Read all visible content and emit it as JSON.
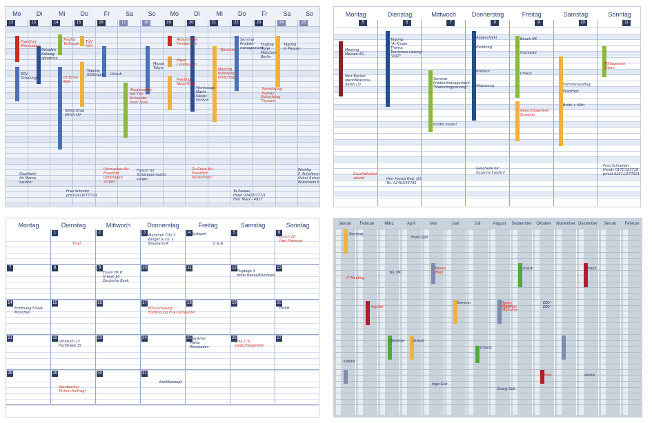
{
  "panel1": {
    "days": [
      "Mo",
      "Di",
      "Mi",
      "Do",
      "Fr",
      "Sa",
      "So",
      "Mo",
      "Di",
      "Mi",
      "Do",
      "Fr",
      "Sa",
      "So"
    ],
    "dates": [
      "12",
      "13",
      "14",
      "15",
      "16",
      "17",
      "18",
      "19",
      "20",
      "21",
      "22",
      "23",
      "24",
      "25"
    ],
    "notes": [
      {
        "text": "Frankfurt\nWiesbaden",
        "red": true
      },
      {
        "text": "Dresden\nKatalog-\nabnahme",
        "red": false
      },
      {
        "text": "Madrid\nTo Burger",
        "red": true
      },
      {
        "text": "TÜV\nKöln",
        "red": true
      },
      {
        "text": "EDV\nSchulung",
        "red": false
      },
      {
        "text": "Urlaub",
        "red": false
      },
      {
        "text": "Tagung\nGöttingen",
        "red": false
      },
      {
        "text": "Geburtstag\nUlrich (3)",
        "red": false
      },
      {
        "text": "Dr.To Go\nKöln",
        "red": true
      },
      {
        "text": "Messe\nTokyo",
        "red": false
      },
      {
        "text": "Wiedersehen\nmit Tim\nSchneider\nbeim Spiel",
        "red": true
      },
      {
        "text": "Aktenordner\nFernbereich",
        "red": true
      },
      {
        "text": "Bayer\nLeverkusen",
        "red": true
      },
      {
        "text": "Meeting\nNeue Halle",
        "red": true
      },
      {
        "text": "Vernissage\nMarkt\nKaiser-\nkirchen",
        "red": false
      },
      {
        "text": "Bochum",
        "red": true
      },
      {
        "text": "Meeting\nNürnberg\nUmschlag",
        "red": true
      },
      {
        "text": "Seminar\nProdukt-\nmanagement",
        "red": false
      },
      {
        "text": "Flugtag\nHotel\nMünchen\nBerlin",
        "red": false
      },
      {
        "text": "Tagung\nin Passau",
        "red": false
      },
      {
        "text": "Fortbildung\nPassau",
        "red": true
      },
      {
        "text": "Geburtstag\nThyssen",
        "red": true
      },
      {
        "text": "Geschenk\nfür Mama\nkaufen!",
        "red": false
      },
      {
        "text": "Frau Schmitz\npro 02418/777/21",
        "red": false
      },
      {
        "text": "Uhrmacher für\nFrankfurt\nUnterlagen\nsorgen",
        "red": true
      },
      {
        "text": "Fleisch für\nSchwiegermutter\nsorgen",
        "red": false
      },
      {
        "text": "Zu Reise für\nFrankfurt\nbestimmen!",
        "red": true
      },
      {
        "text": "To Passau\nHotel 02418/777/1\nHerr Marx - 4927",
        "red": false
      },
      {
        "text": "Wichtig\nP. Anlieferung\nOskar Reisen\nWiesmann kaufen",
        "red": false
      }
    ]
  },
  "panel2": {
    "days": [
      "Montag",
      "Dienstag",
      "Mittwoch",
      "Donnerstag",
      "Freitag",
      "Samstag",
      "Sonntag"
    ],
    "dates": [
      "5",
      "6",
      "7",
      "8",
      "9",
      "10",
      "11"
    ],
    "notes": [
      {
        "text": "Meeting\nMessen AG",
        "red": false
      },
      {
        "text": "Herr Becker\nIdentifikations-\ndaten (3)",
        "red": false
      },
      {
        "text": "Tagung\n\"Al-Kinder\nThema:\nTourismus-Lösung\n\"XRZ\"",
        "red": false
      },
      {
        "text": "Seminar\nProduktmanagement\n\"Marketingplanung\"",
        "red": false
      },
      {
        "text": "Kinder essen!",
        "red": false
      },
      {
        "text": "Abgeschickt",
        "red": false
      },
      {
        "text": "Hamburg",
        "red": false
      },
      {
        "text": "Bremen",
        "red": false
      },
      {
        "text": "Oldenburg",
        "red": false
      },
      {
        "text": "Bauch HK",
        "red": false
      },
      {
        "text": "Fachtorte",
        "red": false
      },
      {
        "text": "Urlaub",
        "red": false
      },
      {
        "text": "Geburtstagsfeier\nSusanne",
        "red": true
      },
      {
        "text": "Familienausflug",
        "red": false
      },
      {
        "text": "Frankfurt",
        "red": false
      },
      {
        "text": "Brüel + Köln",
        "red": false
      },
      {
        "text": "Mittagessen\nEltern",
        "red": true
      },
      {
        "text": "Geschäftsfest\nabend",
        "red": true
      },
      {
        "text": "Herr Hansa Geb. (2)\nTel. 02403/55785",
        "red": false
      },
      {
        "text": "Geschenk für\nSusanne kaufen!",
        "red": false
      },
      {
        "text": "Frau Schneider\nHandy 0171/123718\nprivat 02411/577021",
        "red": false
      }
    ]
  },
  "panel3": {
    "days": [
      "Montag",
      "Dienstag",
      "Mittwoch",
      "Donnerstag",
      "Freitag",
      "Samstag",
      "Sonntag"
    ],
    "weeks": [
      [
        "",
        "1",
        "2",
        "3",
        "4",
        "5",
        "6"
      ],
      [
        "7",
        "8",
        "9",
        "10",
        "11",
        "12",
        "13"
      ],
      [
        "14",
        "15",
        "16",
        "17",
        "18",
        "19",
        "20"
      ],
      [
        "21",
        "22",
        "23",
        "24",
        "25",
        "26",
        "27"
      ],
      [
        "28",
        "29",
        "30",
        "31",
        "",
        "",
        ""
      ]
    ],
    "notes": [
      {
        "text": "Tina!",
        "red": true
      },
      {
        "text": "München TÜV 3\nBerger & Co. 1\nBaumann A",
        "red": false
      },
      {
        "text": "Stuttgart",
        "red": false
      },
      {
        "text": "C & A",
        "red": false
      },
      {
        "text": "Lunch 10\nHerr Hammer",
        "red": true
      },
      {
        "text": "Essen HK 8\nUrlaub 10\nDeutsche Bank",
        "red": false
      },
      {
        "text": "Flugtage 3\nHotel Hansa/München",
        "red": false
      },
      {
        "text": "Eröffnung Filiale\nMünchen",
        "red": false
      },
      {
        "text": "EDV-Schulung\nFortbildung Frau Schneider",
        "red": true
      },
      {
        "text": "Ortlift",
        "red": false
      },
      {
        "text": "Umbruch 13\nFachtrake 15",
        "red": false
      },
      {
        "text": "Frankfurt\nMainz\nWiesbaden",
        "red": false
      },
      {
        "text": "Julia (15)\nGeburtstagsfeier",
        "red": true
      },
      {
        "text": "Handwerker\nTermin-Auftrag!",
        "red": true
      },
      {
        "text": "Bankkonzept",
        "red": false
      }
    ]
  },
  "panel4": {
    "months": [
      "Januar",
      "Februar",
      "März",
      "April",
      "Mai",
      "Juni",
      "Juli",
      "August",
      "September",
      "Oktober",
      "November",
      "Dezember",
      "Januar",
      "Februar"
    ],
    "notes": [
      {
        "text": "Seminar",
        "red": false
      },
      {
        "text": "Hans Geb.",
        "red": false
      },
      {
        "text": "Tel. HK",
        "red": false
      },
      {
        "text": "IT Meeting",
        "red": true
      },
      {
        "text": "Messe\nWien",
        "red": true
      },
      {
        "text": "Kapitel",
        "red": true
      },
      {
        "text": "Seminar",
        "red": false
      },
      {
        "text": "Messe\nFrankfurt",
        "red": true
      },
      {
        "text": "EDV\nEDV",
        "red": false
      },
      {
        "text": "Urlaub",
        "red": false
      },
      {
        "text": "Seminar",
        "red": false
      },
      {
        "text": "Urlaub",
        "red": false
      },
      {
        "text": "Urlaub",
        "red": false
      },
      {
        "text": "Inge Geb.",
        "red": false
      },
      {
        "text": "Georg Geb.",
        "red": false
      },
      {
        "text": "Urlaub",
        "red": false
      },
      {
        "text": "Messe\nMünchen",
        "red": true
      },
      {
        "text": "Fest",
        "red": true
      },
      {
        "text": "Archiv",
        "red": false
      },
      {
        "text": "Kapitel",
        "red": false
      }
    ]
  }
}
